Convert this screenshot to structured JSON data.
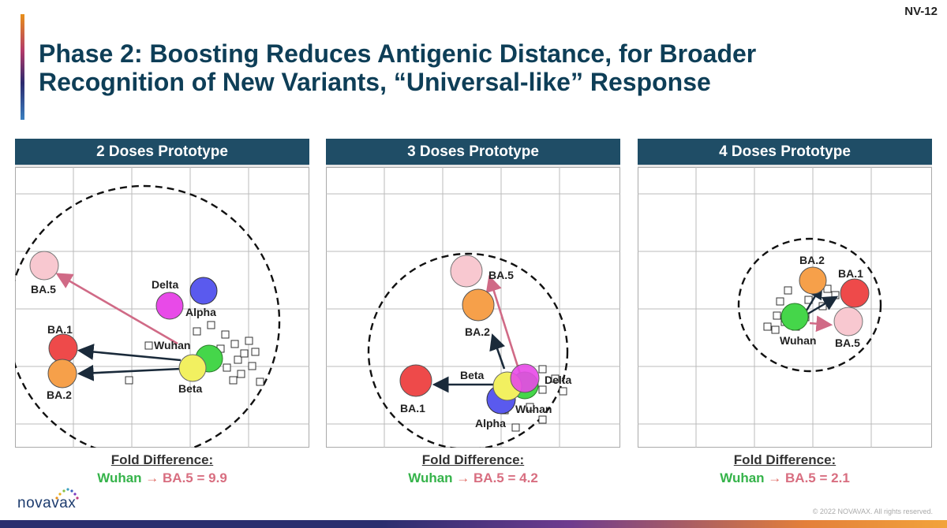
{
  "slide_id": "NV-12",
  "title_line1": "Phase 2: Boosting Reduces Antigenic Distance, for Broader",
  "title_line2": "Recognition of New Variants, “Universal-like” Response",
  "colors": {
    "title": "#0e3e57",
    "header_bg": "#1f4d66",
    "wuhan": "#45d64a",
    "delta": "#e84ae8",
    "alpha": "#5a5aee",
    "beta": "#f2f060",
    "ba1": "#ee4a4a",
    "ba2": "#f6a04a",
    "ba5": "#f8c8d0",
    "pink_arrow": "#d06a86",
    "black_arrow": "#1a2a3a"
  },
  "panels": [
    {
      "header": "2 Doses Prototype",
      "fold_title": "Fold Difference:",
      "fold_wuhan": "Wuhan",
      "fold_arrow": "→",
      "fold_rest": "BA.5 = 9.9",
      "labels": {
        "ba5": "BA.5",
        "delta": "Delta",
        "alpha": "Alpha",
        "ba1": "BA.1",
        "wuhan": "Wuhan",
        "ba2": "BA.2",
        "beta": "Beta"
      }
    },
    {
      "header": "3 Doses Prototype",
      "fold_title": "Fold Difference:",
      "fold_wuhan": "Wuhan",
      "fold_arrow": "→",
      "fold_rest": "BA.5 = 4.2",
      "labels": {
        "ba5": "BA.5",
        "ba2": "BA.2",
        "beta": "Beta",
        "delta": "Delta",
        "ba1": "BA.1",
        "wuhan": "Wuhan",
        "alpha": "Alpha"
      }
    },
    {
      "header": "4 Doses Prototype",
      "fold_title": "Fold Difference:",
      "fold_wuhan": "Wuhan",
      "fold_arrow": "→",
      "fold_rest": "BA.5 = 2.1",
      "labels": {
        "ba2": "BA.2",
        "ba1": "BA.1",
        "wuhan": "Wuhan",
        "ba5": "BA.5"
      }
    }
  ],
  "logo_text": "novavax",
  "copyright": "© 2022 NOVAVAX. All rights reserved."
}
